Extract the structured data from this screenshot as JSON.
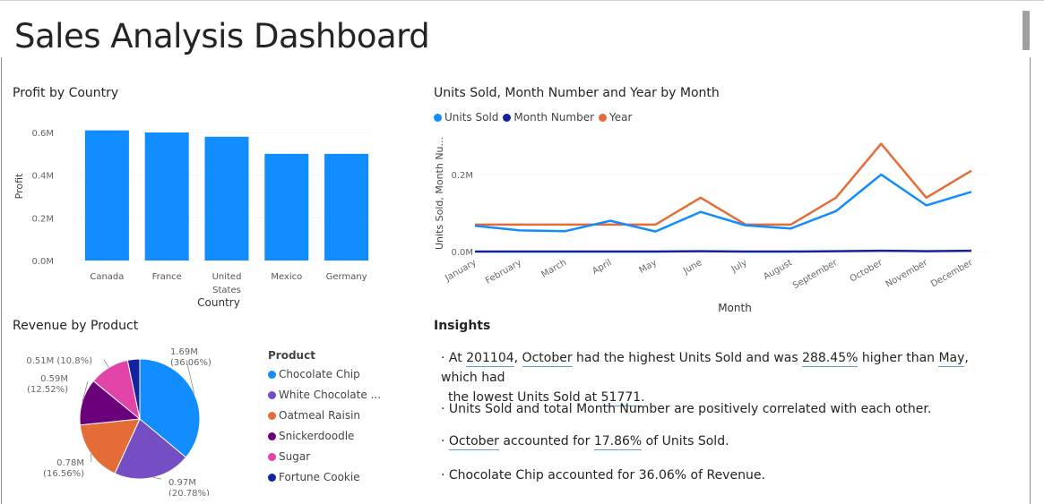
{
  "header": {
    "title": "Sales Analysis Dashboard"
  },
  "profit_chart": {
    "title": "Profit by Country",
    "ylabel": "Profit",
    "xlabel": "Country",
    "color": "#118DFF",
    "yticks": [
      "0.0M",
      "0.2M",
      "0.4M",
      "0.6M"
    ],
    "categories": [
      "Canada",
      "France",
      "United States",
      "Mexico",
      "Germany"
    ]
  },
  "units_chart": {
    "title": "Units Sold, Month Number and Year by Month",
    "ylabel": "Units Sold, Month Nu...",
    "xlabel": "Month",
    "yticks": [
      "0.0M",
      "0.2M"
    ],
    "legend": [
      {
        "name": "Units Sold",
        "color": "#118DFF"
      },
      {
        "name": "Month Number",
        "color": "#12239E"
      },
      {
        "name": "Year",
        "color": "#E66C37"
      }
    ],
    "months": [
      "January",
      "February",
      "March",
      "April",
      "May",
      "June",
      "July",
      "August",
      "September",
      "October",
      "November",
      "December"
    ]
  },
  "revenue_chart": {
    "title": "Revenue by Product",
    "legend_title": "Product",
    "legend": [
      {
        "name": "Chocolate Chip",
        "color": "#118DFF"
      },
      {
        "name": "White Chocolate ...",
        "color": "#744EC2"
      },
      {
        "name": "Oatmeal Raisin",
        "color": "#E66C37"
      },
      {
        "name": "Snickerdoodle",
        "color": "#6B007B"
      },
      {
        "name": "Sugar",
        "color": "#E044A7"
      },
      {
        "name": "Fortune Cookie",
        "color": "#12239E"
      }
    ],
    "labels": [
      {
        "value": "1.69M",
        "pct": "(36.06%)"
      },
      {
        "value": "0.97M",
        "pct": "(20.78%)"
      },
      {
        "value": "0.78M",
        "pct": "(16.56%)"
      },
      {
        "value": "0.59M",
        "pct": "(12.52%)"
      },
      {
        "value": "0.51M",
        "pct": "(10.8%)"
      }
    ]
  },
  "insights": {
    "title": "Insights",
    "line1": {
      "bullet": "·",
      "at": "At",
      "year": "201104",
      "comma": ",",
      "month": "October",
      "t1": "had the highest Units Sold and was",
      "pct": "288.45%",
      "t2": "higher than",
      "low_month": "May",
      "t3": ", which had",
      "t4": "the lowest Units Sold at",
      "low_value": "51771",
      "dot": "."
    },
    "line2": "· Units Sold and total Month Number are positively correlated with each other.",
    "line3": {
      "bullet": "·",
      "month": "October",
      "t1": "accounted for",
      "pct": "17.86%",
      "t2": "of Units Sold."
    },
    "line4": "· Chocolate Chip accounted for 36.06% of Revenue."
  },
  "chart_data": [
    {
      "type": "bar",
      "title": "Profit by Country",
      "xlabel": "Country",
      "ylabel": "Profit",
      "categories": [
        "Canada",
        "France",
        "United States",
        "Mexico",
        "Germany"
      ],
      "values": [
        0.61,
        0.6,
        0.58,
        0.5,
        0.5
      ],
      "unit": "M",
      "ylim": [
        0,
        0.6
      ],
      "grid": true
    },
    {
      "type": "line",
      "title": "Units Sold, Month Number and Year by Month",
      "xlabel": "Month",
      "ylabel": "Units Sold, Month Nu...",
      "x": [
        "January",
        "February",
        "March",
        "April",
        "May",
        "June",
        "July",
        "August",
        "September",
        "October",
        "November",
        "December"
      ],
      "series": [
        {
          "name": "Units Sold",
          "values": [
            0.067,
            0.055,
            0.053,
            0.08,
            0.052,
            0.103,
            0.068,
            0.06,
            0.105,
            0.2,
            0.12,
            0.155
          ]
        },
        {
          "name": "Month Number",
          "values": [
            0.0,
            0.0,
            0.0,
            0.0,
            0.0,
            0.001,
            0.0,
            0.0,
            0.001,
            0.002,
            0.001,
            0.002
          ]
        },
        {
          "name": "Year",
          "values": [
            0.07,
            0.07,
            0.07,
            0.07,
            0.07,
            0.14,
            0.07,
            0.07,
            0.14,
            0.28,
            0.14,
            0.21
          ]
        }
      ],
      "unit": "M",
      "legend": "top-left",
      "grid": true
    },
    {
      "type": "pie",
      "title": "Revenue by Product",
      "categories": [
        "Chocolate Chip",
        "White Chocolate ...",
        "Oatmeal Raisin",
        "Snickerdoodle",
        "Sugar",
        "Fortune Cookie"
      ],
      "values": [
        36.06,
        20.78,
        16.56,
        12.52,
        10.8,
        3.28
      ],
      "legend": "right"
    }
  ]
}
